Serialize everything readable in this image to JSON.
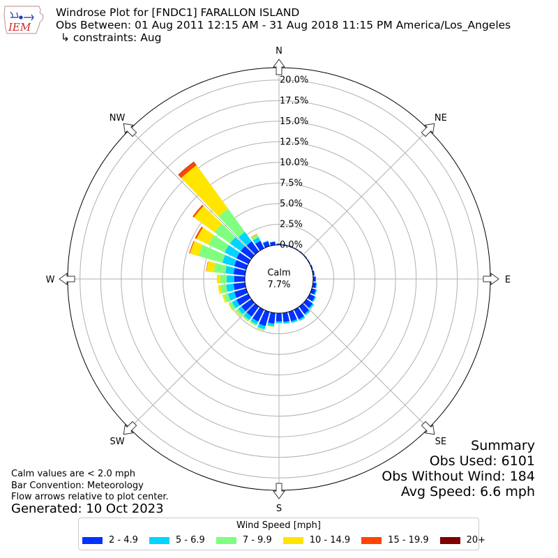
{
  "header": {
    "title": "Windrose Plot for [FNDC1] FARALLON ISLAND",
    "subtitle": "Obs Between: 01 Aug 2011 12:15 AM - 31 Aug 2018 11:15 PM America/Los_Angeles",
    "constraints": "↳ constraints: Aug"
  },
  "logo": {
    "text": "IEM",
    "icon": "iowa-state-outline-icon"
  },
  "calm": {
    "label": "Calm",
    "value": "7.7%"
  },
  "notes": {
    "line1": "Calm values are < 2.0 mph",
    "line2": "Bar Convention: Meteorology",
    "line3": "Flow arrows relative to plot center.",
    "generated": "Generated: 10 Oct 2023"
  },
  "summary": {
    "title": "Summary",
    "obs_used": "Obs Used: 6101",
    "obs_without_wind": "Obs Without Wind: 184",
    "avg_speed": "Avg Speed: 6.6 mph"
  },
  "legend": {
    "title": "Wind Speed [mph]",
    "items": [
      {
        "label": "2 - 4.9",
        "color": "#0033ff"
      },
      {
        "label": "5 - 6.9",
        "color": "#00d4ff"
      },
      {
        "label": "7 - 9.9",
        "color": "#7fff7f"
      },
      {
        "label": "10 - 14.9",
        "color": "#ffe500"
      },
      {
        "label": "15 - 19.9",
        "color": "#ff4500"
      },
      {
        "label": "20+",
        "color": "#7f0000"
      }
    ]
  },
  "chart_data": {
    "type": "windrose",
    "radial_unit": "%",
    "radial_max": 21.5,
    "rings": [
      0.0,
      2.5,
      5.0,
      7.5,
      10.0,
      12.5,
      15.0,
      17.5,
      20.0
    ],
    "ring_labels": [
      "0.0%",
      "2.5%",
      "5.0%",
      "7.5%",
      "10.0%",
      "12.5%",
      "15.0%",
      "17.5%",
      "20.0%"
    ],
    "compass_labels": [
      {
        "label": "N",
        "deg": 0
      },
      {
        "label": "NE",
        "deg": 45
      },
      {
        "label": "E",
        "deg": 90
      },
      {
        "label": "SE",
        "deg": 135
      },
      {
        "label": "S",
        "deg": 180
      },
      {
        "label": "SW",
        "deg": 225
      },
      {
        "label": "W",
        "deg": 270
      },
      {
        "label": "NW",
        "deg": 315
      }
    ],
    "bins": [
      "2 - 4.9",
      "5 - 6.9",
      "7 - 9.9",
      "10 - 14.9",
      "15 - 19.9",
      "20+"
    ],
    "directions": [
      {
        "deg": 0,
        "values": [
          0.15,
          0.0,
          0.0,
          0.0,
          0.0,
          0.0
        ]
      },
      {
        "deg": 10,
        "values": [
          0.1,
          0.0,
          0.0,
          0.0,
          0.0,
          0.0
        ]
      },
      {
        "deg": 20,
        "values": [
          0.1,
          0.0,
          0.0,
          0.0,
          0.0,
          0.0
        ]
      },
      {
        "deg": 30,
        "values": [
          0.1,
          0.0,
          0.0,
          0.0,
          0.0,
          0.0
        ]
      },
      {
        "deg": 40,
        "values": [
          0.1,
          0.0,
          0.0,
          0.0,
          0.0,
          0.0
        ]
      },
      {
        "deg": 50,
        "values": [
          0.1,
          0.0,
          0.0,
          0.0,
          0.0,
          0.0
        ]
      },
      {
        "deg": 60,
        "values": [
          0.1,
          0.0,
          0.0,
          0.0,
          0.0,
          0.0
        ]
      },
      {
        "deg": 70,
        "values": [
          0.15,
          0.0,
          0.0,
          0.0,
          0.0,
          0.0
        ]
      },
      {
        "deg": 80,
        "values": [
          0.2,
          0.0,
          0.0,
          0.0,
          0.0,
          0.0
        ]
      },
      {
        "deg": 90,
        "values": [
          0.3,
          0.05,
          0.0,
          0.0,
          0.0,
          0.0
        ]
      },
      {
        "deg": 100,
        "values": [
          0.4,
          0.1,
          0.0,
          0.0,
          0.0,
          0.0
        ]
      },
      {
        "deg": 110,
        "values": [
          0.5,
          0.15,
          0.0,
          0.0,
          0.0,
          0.0
        ]
      },
      {
        "deg": 120,
        "values": [
          0.7,
          0.15,
          0.05,
          0.0,
          0.0,
          0.0
        ]
      },
      {
        "deg": 130,
        "values": [
          0.9,
          0.2,
          0.05,
          0.0,
          0.0,
          0.0
        ]
      },
      {
        "deg": 140,
        "values": [
          1.1,
          0.2,
          0.05,
          0.0,
          0.0,
          0.0
        ]
      },
      {
        "deg": 150,
        "values": [
          1.3,
          0.2,
          0.05,
          0.0,
          0.0,
          0.0
        ]
      },
      {
        "deg": 160,
        "values": [
          1.2,
          0.2,
          0.05,
          0.0,
          0.0,
          0.0
        ]
      },
      {
        "deg": 170,
        "values": [
          1.1,
          0.2,
          0.05,
          0.0,
          0.0,
          0.0
        ]
      },
      {
        "deg": 180,
        "values": [
          1.0,
          0.2,
          0.05,
          0.0,
          0.0,
          0.0
        ]
      },
      {
        "deg": 190,
        "values": [
          1.3,
          0.3,
          0.1,
          0.05,
          0.0,
          0.0
        ]
      },
      {
        "deg": 200,
        "values": [
          1.8,
          0.4,
          0.15,
          0.05,
          0.0,
          0.0
        ]
      },
      {
        "deg": 210,
        "values": [
          1.6,
          0.4,
          0.15,
          0.05,
          0.0,
          0.0
        ]
      },
      {
        "deg": 220,
        "values": [
          1.5,
          0.5,
          0.2,
          0.05,
          0.0,
          0.0
        ]
      },
      {
        "deg": 230,
        "values": [
          1.5,
          0.5,
          0.3,
          0.1,
          0.0,
          0.0
        ]
      },
      {
        "deg": 240,
        "values": [
          1.6,
          0.6,
          0.4,
          0.1,
          0.0,
          0.0
        ]
      },
      {
        "deg": 250,
        "values": [
          1.5,
          0.8,
          0.5,
          0.2,
          0.0,
          0.0
        ]
      },
      {
        "deg": 260,
        "values": [
          1.4,
          0.9,
          0.7,
          0.3,
          0.0,
          0.0
        ]
      },
      {
        "deg": 270,
        "values": [
          1.3,
          0.9,
          0.8,
          0.4,
          0.0,
          0.0
        ]
      },
      {
        "deg": 280,
        "values": [
          1.4,
          1.0,
          1.4,
          0.9,
          0.05,
          0.0
        ]
      },
      {
        "deg": 290,
        "values": [
          1.5,
          1.5,
          3.0,
          1.1,
          0.1,
          0.0
        ]
      },
      {
        "deg": 300,
        "values": [
          1.6,
          1.6,
          2.2,
          1.6,
          0.2,
          0.0
        ]
      },
      {
        "deg": 310,
        "values": [
          1.6,
          1.6,
          2.3,
          3.1,
          0.2,
          0.0
        ]
      },
      {
        "deg": 320,
        "values": [
          1.5,
          1.4,
          3.5,
          6.5,
          0.5,
          0.05
        ]
      },
      {
        "deg": 330,
        "values": [
          1.0,
          0.5,
          0.3,
          0.1,
          0.05,
          0.0
        ]
      },
      {
        "deg": 340,
        "values": [
          0.6,
          0.1,
          0.0,
          0.0,
          0.0,
          0.0
        ]
      },
      {
        "deg": 350,
        "values": [
          0.4,
          0.05,
          0.0,
          0.0,
          0.0,
          0.0
        ]
      }
    ]
  }
}
